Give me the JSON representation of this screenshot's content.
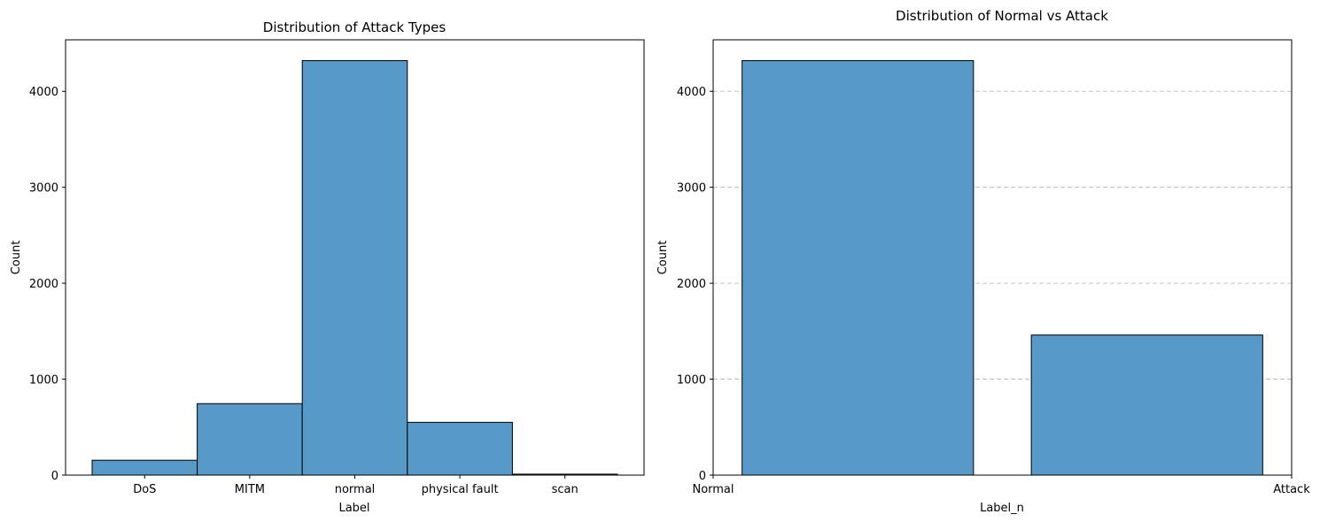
{
  "chart_data": [
    {
      "type": "bar",
      "title": "Distribution of Attack Types",
      "xlabel": "Label",
      "ylabel": "Count",
      "categories": [
        "DoS",
        "MITM",
        "normal",
        "physical fault",
        "scan"
      ],
      "values": [
        155,
        745,
        4320,
        550,
        10
      ],
      "ylim": [
        0,
        4537
      ],
      "yticks": [
        0,
        1000,
        2000,
        3000,
        4000
      ],
      "grid": false,
      "bar_color": "#5799c7",
      "edge_color": "#000000"
    },
    {
      "type": "bar",
      "title": "Distribution of Normal vs Attack",
      "xlabel": "Label_n",
      "ylabel": "Count",
      "categories": [
        "Normal",
        "Attack"
      ],
      "values": [
        4320,
        1460
      ],
      "ylim": [
        0,
        4537
      ],
      "yticks": [
        0,
        1000,
        2000,
        3000,
        4000
      ],
      "xtick_labels": [
        "Normal",
        "Attack"
      ],
      "grid": true,
      "bar_color": "#5799c7",
      "edge_color": "#000000"
    }
  ]
}
